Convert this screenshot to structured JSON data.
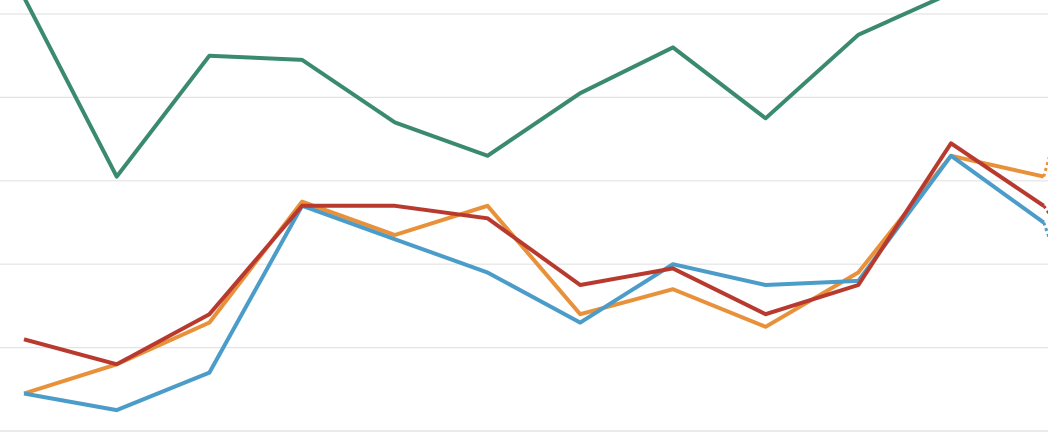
{
  "chart_data": {
    "type": "line",
    "x": [
      1,
      2,
      3,
      4,
      5,
      6,
      7,
      8,
      9,
      10,
      11,
      12
    ],
    "ylim": [
      0,
      5
    ],
    "grid": true,
    "y_gridlines": [
      0,
      1,
      2,
      3,
      4,
      5
    ],
    "legend": "none",
    "series": [
      {
        "color": "#3a8a6f",
        "values": [
          5.2,
          3.05,
          4.5,
          4.45,
          3.7,
          3.3,
          4.05,
          4.6,
          3.75,
          4.75,
          5.25,
          null
        ],
        "dashed_tail": []
      },
      {
        "color": "#e8913a",
        "values": [
          0.45,
          0.8,
          1.3,
          2.75,
          2.35,
          2.7,
          1.4,
          1.7,
          1.25,
          1.9,
          3.3,
          3.05
        ],
        "dashed_tail": [
          3.05,
          3.3
        ]
      },
      {
        "color": "#4b9cc9",
        "values": [
          0.45,
          0.25,
          0.7,
          2.7,
          2.3,
          1.9,
          1.3,
          2.0,
          1.75,
          1.8,
          3.3,
          2.5
        ],
        "dashed_tail": [
          2.5,
          2.3
        ]
      },
      {
        "color": "#b83a2f",
        "values": [
          1.1,
          0.8,
          1.4,
          2.7,
          2.7,
          2.55,
          1.75,
          1.95,
          1.4,
          1.75,
          3.45,
          2.7
        ],
        "dashed_tail": [
          2.7,
          2.6
        ]
      }
    ]
  }
}
